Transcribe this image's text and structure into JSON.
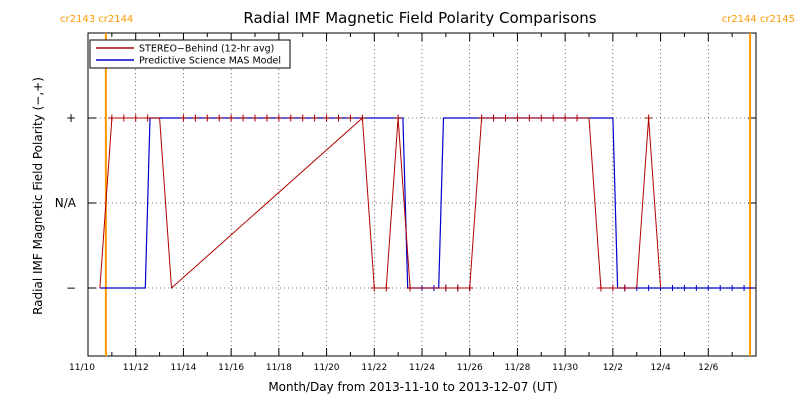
{
  "chart_data": {
    "type": "line",
    "title": "Radial IMF Magnetic Field Polarity Comparisons",
    "xlabel": "Month/Day from 2013-11-10 to 2013-12-07 (UT)",
    "ylabel": "Radial IMF Magnetic Field Polarity (−,+)",
    "xlim": [
      0,
      28
    ],
    "ylim": [
      -1.8,
      2.0
    ],
    "x_tick_values": [
      0,
      2,
      4,
      6,
      8,
      10,
      12,
      14,
      16,
      18,
      20,
      22,
      24,
      26
    ],
    "x_tick_labels": [
      "11/10",
      "11/12",
      "11/14",
      "11/16",
      "11/18",
      "11/20",
      "11/22",
      "11/24",
      "11/26",
      "11/28",
      "11/30",
      "12/2",
      "12/4",
      "12/6"
    ],
    "y_tick_values": [
      1,
      0,
      -1
    ],
    "y_tick_labels": [
      "+",
      "N/A",
      "−"
    ],
    "grid": true,
    "legend_position": "top-left",
    "carrington_left": "cr2143 cr2144",
    "carrington_right": "cr2144 cr2145",
    "carrington_boundaries": [
      0.75,
      27.75
    ],
    "carrington_color": "#ff9900",
    "series": [
      {
        "name": "STEREO−Behind (12-hr avg)",
        "color": "#b00000",
        "marker": "+",
        "points": [
          [
            0.5,
            -1
          ],
          [
            1.0,
            1
          ],
          [
            1.5,
            1
          ],
          [
            2.0,
            1
          ],
          [
            2.5,
            1
          ],
          [
            3.0,
            1
          ],
          [
            3.5,
            -1
          ],
          [
            11.5,
            1
          ],
          [
            12.0,
            -1
          ],
          [
            12.5,
            -1
          ],
          [
            13.0,
            1
          ],
          [
            13.5,
            -1
          ],
          [
            15.0,
            -1
          ],
          [
            15.5,
            -1
          ],
          [
            16.0,
            -1
          ],
          [
            16.5,
            1
          ],
          [
            17.0,
            1
          ],
          [
            17.5,
            1
          ],
          [
            18.0,
            1
          ],
          [
            18.5,
            1
          ],
          [
            19.0,
            1
          ],
          [
            19.5,
            1
          ],
          [
            20.0,
            1
          ],
          [
            21.0,
            1
          ],
          [
            21.5,
            -1
          ],
          [
            22.0,
            -1
          ],
          [
            22.5,
            -1
          ],
          [
            23.0,
            -1
          ],
          [
            23.5,
            1
          ],
          [
            24.0,
            -1
          ]
        ],
        "plus_markers": [
          [
            1.0,
            1
          ],
          [
            1.5,
            1
          ],
          [
            2.0,
            1
          ],
          [
            2.5,
            1
          ],
          [
            4.0,
            1
          ],
          [
            4.5,
            1
          ],
          [
            5.0,
            1
          ],
          [
            5.5,
            1
          ],
          [
            6.0,
            1
          ],
          [
            6.5,
            1
          ],
          [
            7.0,
            1
          ],
          [
            7.5,
            1
          ],
          [
            8.0,
            1
          ],
          [
            8.5,
            1
          ],
          [
            9.0,
            1
          ],
          [
            9.5,
            1
          ],
          [
            10.0,
            1
          ],
          [
            10.5,
            1
          ],
          [
            11.0,
            1
          ],
          [
            11.5,
            1
          ],
          [
            12.0,
            -1
          ],
          [
            12.5,
            -1
          ],
          [
            13.0,
            1
          ],
          [
            13.5,
            -1
          ],
          [
            15.0,
            -1
          ],
          [
            15.5,
            -1
          ],
          [
            16.0,
            -1
          ],
          [
            16.5,
            1
          ],
          [
            17.0,
            1
          ],
          [
            17.5,
            1
          ],
          [
            18.0,
            1
          ],
          [
            18.5,
            1
          ],
          [
            19.0,
            1
          ],
          [
            19.5,
            1
          ],
          [
            20.0,
            1
          ],
          [
            20.5,
            1
          ],
          [
            21.5,
            -1
          ],
          [
            22.0,
            -1
          ],
          [
            22.5,
            -1
          ],
          [
            23.5,
            1
          ]
        ]
      },
      {
        "name": "Predictive Science MAS Model",
        "color": "#0000cc",
        "points": [
          [
            0.5,
            -1
          ],
          [
            2.4,
            -1
          ],
          [
            2.6,
            1
          ],
          [
            13.2,
            1
          ],
          [
            13.4,
            -1
          ],
          [
            14.7,
            -1
          ],
          [
            14.9,
            1
          ],
          [
            22.0,
            1
          ],
          [
            22.2,
            -1
          ],
          [
            27.9,
            -1
          ]
        ],
        "x_markers": [
          14.0,
          14.5,
          15.0,
          15.5,
          16.0,
          22.5,
          23.0,
          23.5,
          24.0,
          24.5,
          25.0,
          25.5,
          26.0,
          26.5,
          27.0,
          27.5
        ]
      }
    ]
  }
}
